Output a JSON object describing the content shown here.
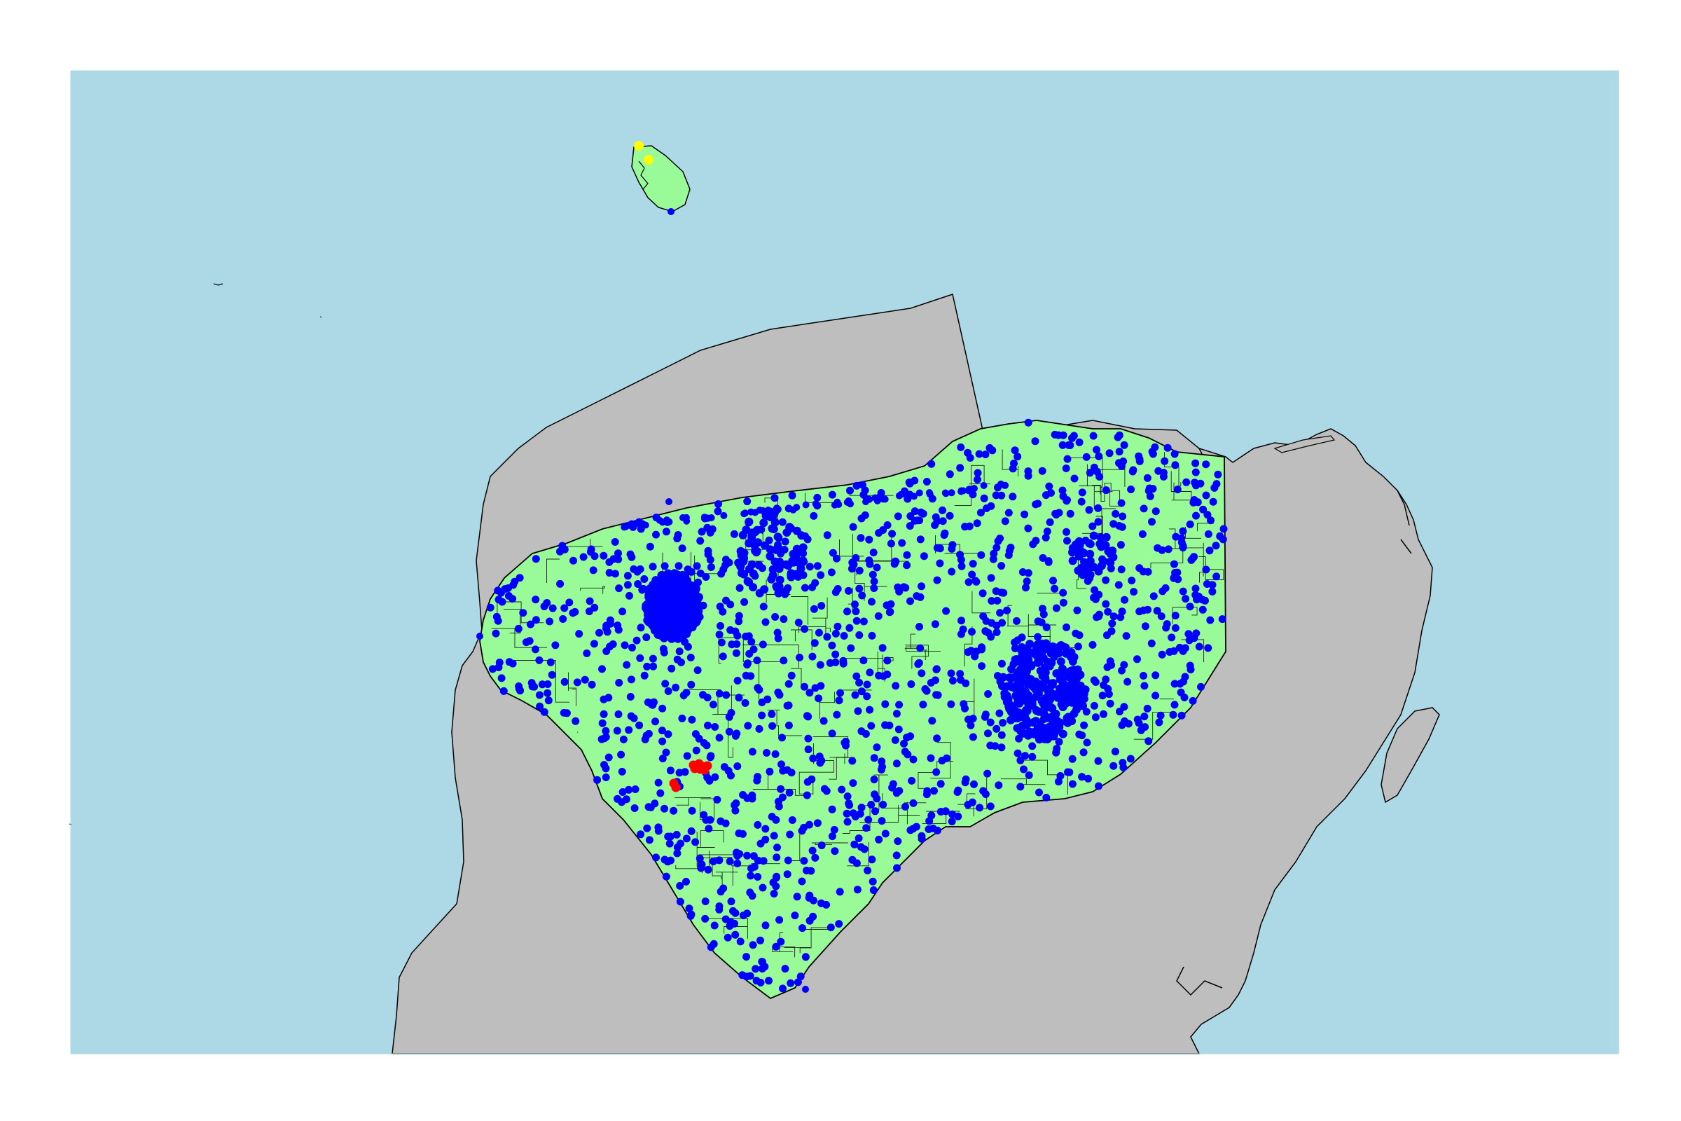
{
  "map": {
    "colors": {
      "background": "#ffffff",
      "sea": "#add8e6",
      "land_other": "#bebebe",
      "land_focus": "#98fb98",
      "boundary": "#000000",
      "points_main": "#0000ff",
      "points_red": "#ff0000",
      "points_yellow": "#ffff00"
    },
    "point_groups": [
      {
        "name": "blue-localities",
        "color_key": "points_main"
      },
      {
        "name": "red-localities",
        "color_key": "points_red"
      },
      {
        "name": "yellow-localities",
        "color_key": "points_yellow"
      }
    ]
  }
}
